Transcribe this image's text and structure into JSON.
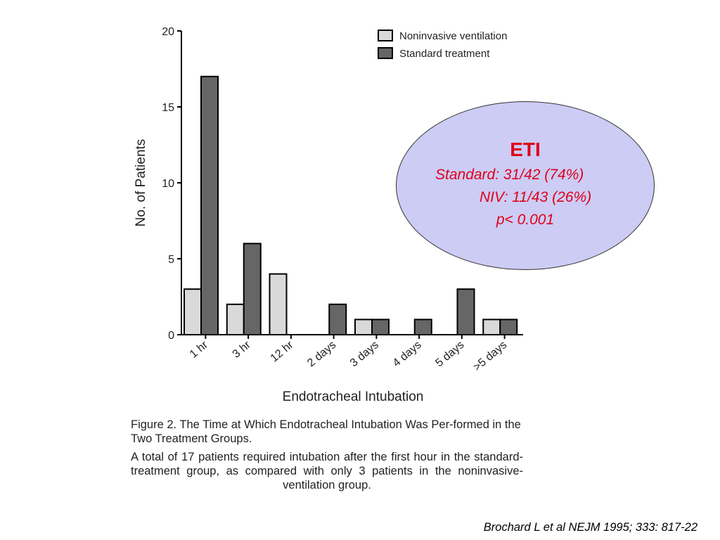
{
  "chart_data": {
    "type": "bar",
    "categories": [
      "1 hr",
      "3 hr",
      "12 hr",
      "2 days",
      "3 days",
      "4 days",
      "5 days",
      ">5 days"
    ],
    "series": [
      {
        "name": "Noninvasive ventilation",
        "values": [
          3,
          2,
          4,
          0,
          1,
          0,
          0,
          1
        ],
        "color": "#d9d9d9"
      },
      {
        "name": "Standard treatment",
        "values": [
          17,
          6,
          0,
          2,
          1,
          1,
          3,
          1
        ],
        "color": "#666666"
      }
    ],
    "xlabel": "Endotracheal Intubation",
    "ylabel": "No. of Patients",
    "ylim": [
      0,
      20
    ],
    "yticks": [
      0,
      5,
      10,
      15,
      20
    ],
    "legend_position": "top-right",
    "grid": false
  },
  "caption": {
    "title": "Figure 2. The Time at Which Endotracheal Intubation Was Per-formed in the Two Treatment Groups.",
    "body": "A total of 17 patients required intubation after the first hour in the standard-treatment group, as compared with only 3 patients in the noninvasive-ventilation group."
  },
  "eti_box": {
    "title": "ETI",
    "standard": "Standard:  31/42 (74%)",
    "niv": "NIV: 11/43 (26%)",
    "p_value": "p< 0.001",
    "color": "#e0001a",
    "fill": "#ccccf5"
  },
  "citation": "Brochard L et al NEJM 1995; 333: 817-22"
}
